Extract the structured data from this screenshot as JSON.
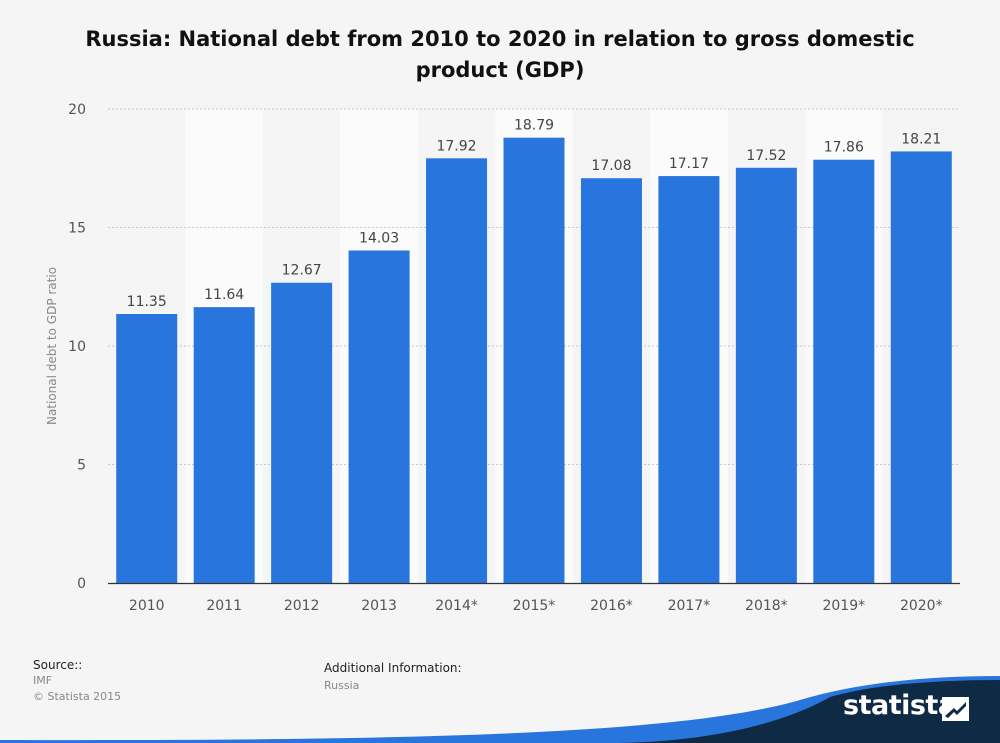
{
  "title": "Russia: National debt from 2010 to 2020 in relation to gross domestic product (GDP)",
  "chart_data": {
    "type": "bar",
    "categories": [
      "2010",
      "2011",
      "2012",
      "2013",
      "2014*",
      "2015*",
      "2016*",
      "2017*",
      "2018*",
      "2019*",
      "2020*"
    ],
    "values": [
      11.35,
      11.64,
      12.67,
      14.03,
      17.92,
      18.79,
      17.08,
      17.17,
      17.52,
      17.86,
      18.21
    ],
    "value_labels": [
      "11.35",
      "11.64",
      "12.67",
      "14.03",
      "17.92",
      "18.79",
      "17.08",
      "17.17",
      "17.52",
      "17.86",
      "18.21"
    ],
    "ylabel": "National debt to GDP ratio",
    "ylim": [
      0,
      20
    ],
    "yticks": [
      "0",
      "5",
      "10",
      "15",
      "20"
    ],
    "grid": true,
    "bar_color": "#2876dd"
  },
  "footer": {
    "source_label": "Source::",
    "source_lines": [
      "IMF",
      "© Statista 2015"
    ],
    "additional_label": "Additional Information:",
    "additional_value": "Russia"
  },
  "brand": {
    "name": "statista",
    "accent": "#2876dd",
    "dark": "#0f2a44"
  }
}
